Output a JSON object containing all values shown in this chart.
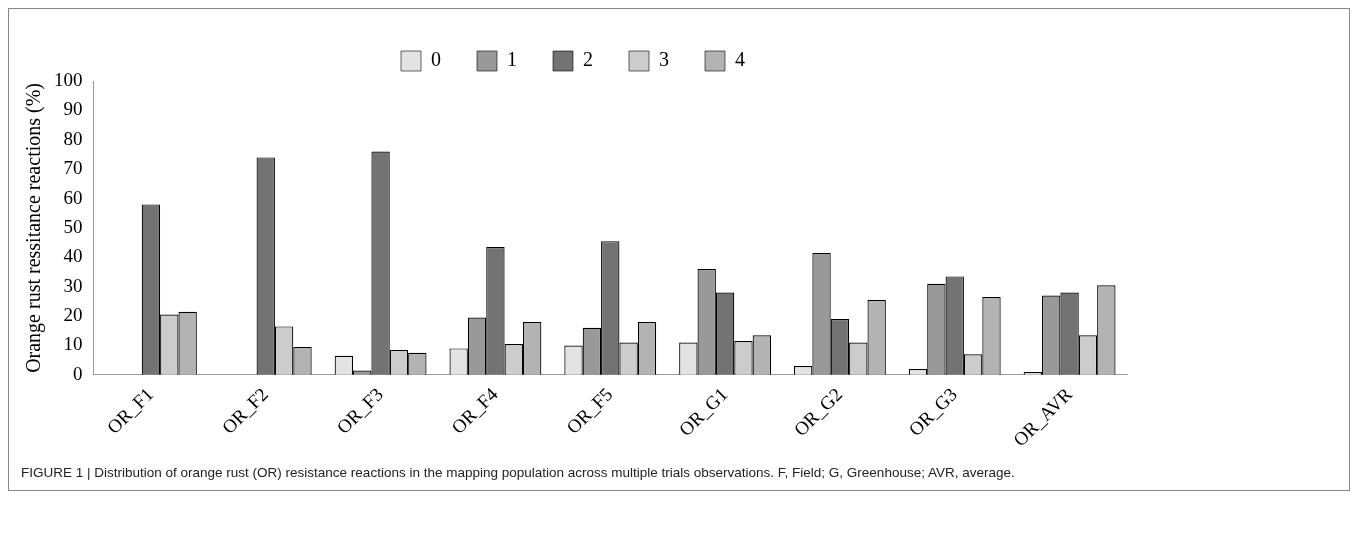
{
  "chart_data": {
    "type": "bar",
    "categories": [
      "OR_F1",
      "OR_F2",
      "OR_F3",
      "OR_F4",
      "OR_F5",
      "OR_G1",
      "OR_G2",
      "OR_G3",
      "OR_AVR"
    ],
    "series": [
      {
        "name": "0",
        "color": "#e3e3e3",
        "values": [
          0,
          0,
          6.5,
          9,
          10,
          11,
          3,
          2,
          1
        ]
      },
      {
        "name": "1",
        "color": "#999999",
        "values": [
          0,
          0,
          1.5,
          19.5,
          16,
          36,
          41.5,
          31,
          27
        ]
      },
      {
        "name": "2",
        "color": "#737373",
        "values": [
          58,
          74,
          76,
          43.5,
          45.5,
          28,
          19,
          33.5,
          28
        ]
      },
      {
        "name": "3",
        "color": "#cccccc",
        "values": [
          20.5,
          16.5,
          8.5,
          10.5,
          11,
          11.5,
          11,
          7,
          13.5
        ]
      },
      {
        "name": "4",
        "color": "#b3b3b3",
        "values": [
          21.5,
          9.5,
          7.5,
          18,
          18,
          13.5,
          25.5,
          26.5,
          30.5
        ]
      }
    ],
    "ylabel": "Orange rust ressitance reactions (%)",
    "ylim": [
      0,
      100
    ],
    "yticks": [
      0,
      10,
      20,
      30,
      40,
      50,
      60,
      70,
      80,
      90,
      100
    ],
    "grid": false,
    "legend": "top",
    "annotations": [
      "FIGURE 1 | Distribution of orange rust (OR) resistance reactions in the mapping population across multiple trials observations. F, Field; G, Greenhouse; AVR, average."
    ]
  }
}
